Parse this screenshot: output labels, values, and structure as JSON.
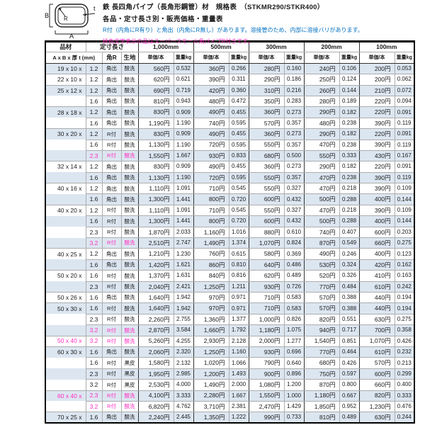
{
  "header": {
    "title": "鉄 長四角パイプ（長角形鋼管）材　規格表　（STKMR290/STKR400）",
    "subtitle": "各品・定寸長さ別・販売価格・重量表",
    "note_blue": "R付（内角にR有り）と角出（内角にR無し）があります。溶接管のため、内部に溶接バリがあります。",
    "note_pink": "桃色文字表示の品はスーパースモール角パイプR付きです。",
    "diagram": {
      "a": "A",
      "b": "B",
      "r": "R",
      "t": "t"
    }
  },
  "colors": {
    "pink": "#ff2dbf",
    "blue": "#0070c0",
    "row_shade": "#dce6f1"
  },
  "table": {
    "header": {
      "item": "品材",
      "length": "定寸長さ",
      "size_label": "A x B x 厚 t (mm)",
      "corner": "角R",
      "surface": "生地",
      "lengths": [
        "1,000mm",
        "500mm",
        "300mm",
        "200mm",
        "100mm"
      ],
      "price_label": "単価/本",
      "weight_label": "重量kg"
    },
    "groups": [
      {
        "size": "19 x 10 x",
        "pink": false,
        "rows": [
          {
            "t": "1.2",
            "r": "角出",
            "s": "酸洗",
            "pink": false,
            "v": [
              "560円",
              "0.532",
              "360円",
              "0.266",
              "280円",
              "0.160",
              "240円",
              "0.106",
              "200円",
              "0.053"
            ]
          }
        ]
      },
      {
        "size": "22 x 10 x",
        "pink": false,
        "rows": [
          {
            "t": "1.2",
            "r": "角出",
            "s": "酸洗",
            "pink": false,
            "v": [
              "620円",
              "0.621",
              "390円",
              "0.311",
              "290円",
              "0.186",
              "250円",
              "0.124",
              "200円",
              "0.062"
            ]
          }
        ]
      },
      {
        "size": "25 x 12 x",
        "pink": false,
        "rows": [
          {
            "t": "1.2",
            "r": "角出",
            "s": "酸洗",
            "pink": false,
            "v": [
              "690円",
              "0.719",
              "420円",
              "0.360",
              "310円",
              "0.216",
              "260円",
              "0.144",
              "210円",
              "0.072"
            ]
          },
          {
            "t": "1.6",
            "r": "角出",
            "s": "酸洗",
            "pink": false,
            "v": [
              "810円",
              "0.943",
              "480円",
              "0.472",
              "350円",
              "0.283",
              "280円",
              "0.189",
              "220円",
              "0.094"
            ]
          }
        ]
      },
      {
        "size": "28 x 18 x",
        "pink": false,
        "rows": [
          {
            "t": "1.2",
            "r": "角出",
            "s": "酸洗",
            "pink": false,
            "v": [
              "830円",
              "0.909",
              "490円",
              "0.455",
              "360円",
              "0.273",
              "290円",
              "0.182",
              "220円",
              "0.091"
            ]
          },
          {
            "t": "1.6",
            "r": "角出",
            "s": "酸洗",
            "pink": false,
            "v": [
              "1,190円",
              "1.190",
              "740円",
              "0.595",
              "570円",
              "0.357",
              "480円",
              "0.238",
              "390円",
              "0.119"
            ]
          }
        ]
      },
      {
        "size": "30 x 20 x",
        "pink": false,
        "rows": [
          {
            "t": "1.2",
            "r": "R付",
            "s": "酸洗",
            "pink": false,
            "v": [
              "830円",
              "0.909",
              "490円",
              "0.455",
              "360円",
              "0.273",
              "290円",
              "0.182",
              "220円",
              "0.091"
            ]
          },
          {
            "t": "1.6",
            "r": "R付",
            "s": "酸洗",
            "pink": false,
            "v": [
              "1,130円",
              "1.190",
              "720円",
              "0.595",
              "550円",
              "0.357",
              "470円",
              "0.238",
              "390円",
              "0.119"
            ]
          },
          {
            "t": "2.3",
            "r": "R付",
            "s": "酸洗",
            "pink": true,
            "v": [
              "1,550円",
              "1.667",
              "930円",
              "0.833",
              "680円",
              "0.500",
              "550円",
              "0.333",
              "430円",
              "0.167"
            ]
          }
        ]
      },
      {
        "size": "32 x 14 x",
        "pink": false,
        "rows": [
          {
            "t": "1.2",
            "r": "角出",
            "s": "酸洗",
            "pink": false,
            "v": [
              "830円",
              "0.909",
              "490円",
              "0.455",
              "360円",
              "0.273",
              "290円",
              "0.182",
              "220円",
              "0.091"
            ]
          },
          {
            "t": "1.6",
            "r": "角出",
            "s": "酸洗",
            "pink": false,
            "v": [
              "1,130円",
              "1.190",
              "720円",
              "0.595",
              "550円",
              "0.357",
              "470円",
              "0.238",
              "390円",
              "0.119"
            ]
          }
        ]
      },
      {
        "size": "40 x 16 x",
        "pink": false,
        "rows": [
          {
            "t": "1.2",
            "r": "角出",
            "s": "酸洗",
            "pink": false,
            "v": [
              "1,110円",
              "1.091",
              "710円",
              "0.545",
              "550円",
              "0.327",
              "470円",
              "0.218",
              "390円",
              "0.109"
            ]
          },
          {
            "t": "1.6",
            "r": "角出",
            "s": "酸洗",
            "pink": false,
            "v": [
              "1,300円",
              "1.441",
              "800円",
              "0.720",
              "600円",
              "0.432",
              "500円",
              "0.288",
              "400円",
              "0.144"
            ]
          }
        ]
      },
      {
        "size": "40 x 20 x",
        "pink": false,
        "rows": [
          {
            "t": "1.2",
            "r": "R付",
            "s": "酸洗",
            "pink": false,
            "v": [
              "1,110円",
              "1.091",
              "710円",
              "0.545",
              "550円",
              "0.327",
              "470円",
              "0.218",
              "390円",
              "0.109"
            ]
          },
          {
            "t": "1.6",
            "r": "R付",
            "s": "酸洗",
            "pink": false,
            "v": [
              "1,300円",
              "1.441",
              "800円",
              "0.720",
              "600円",
              "0.432",
              "500円",
              "0.288",
              "400円",
              "0.144"
            ]
          },
          {
            "t": "2.3",
            "r": "R付",
            "s": "酸洗",
            "pink": false,
            "v": [
              "1,870円",
              "2.033",
              "1,160円",
              "1.016",
              "880円",
              "0.610",
              "740円",
              "0.407",
              "600円",
              "0.203"
            ]
          },
          {
            "t": "3.2",
            "r": "R付",
            "s": "酸洗",
            "pink": true,
            "v": [
              "2,510円",
              "2.747",
              "1,490円",
              "1.374",
              "1,070円",
              "0.824",
              "870円",
              "0.549",
              "660円",
              "0.275"
            ]
          }
        ]
      },
      {
        "size": "40 x 25 x",
        "pink": false,
        "rows": [
          {
            "t": "1.2",
            "r": "角出",
            "s": "酸洗",
            "pink": false,
            "v": [
              "1,210円",
              "1.230",
              "760円",
              "0.615",
              "580円",
              "0.369",
              "490円",
              "0.246",
              "400円",
              "0.123"
            ]
          },
          {
            "t": "1.6",
            "r": "角出",
            "s": "酸洗",
            "pink": false,
            "v": [
              "1,420円",
              "1.621",
              "860円",
              "0.810",
              "640円",
              "0.486",
              "530円",
              "0.324",
              "420円",
              "0.162"
            ]
          }
        ]
      },
      {
        "size": "50 x 20 x",
        "pink": false,
        "rows": [
          {
            "t": "1.6",
            "r": "R付",
            "s": "酸洗",
            "pink": false,
            "v": [
              "1,370円",
              "1.631",
              "840円",
              "0.816",
              "620円",
              "0.489",
              "520円",
              "0.326",
              "410円",
              "0.163"
            ]
          },
          {
            "t": "2.3",
            "r": "R付",
            "s": "酸洗",
            "pink": false,
            "v": [
              "2,040円",
              "2.421",
              "1,250円",
              "1.211",
              "930円",
              "0.726",
              "770円",
              "0.484",
              "610円",
              "0.242"
            ]
          }
        ]
      },
      {
        "size": "50 x 26 x",
        "pink": false,
        "rows": [
          {
            "t": "1.6",
            "r": "角出",
            "s": "酸洗",
            "pink": false,
            "v": [
              "1,640円",
              "1.942",
              "970円",
              "0.971",
              "710円",
              "0.583",
              "570円",
              "0.388",
              "440円",
              "0.194"
            ]
          }
        ]
      },
      {
        "size": "50 x 30 x",
        "pink": false,
        "rows": [
          {
            "t": "1.6",
            "r": "R付",
            "s": "酸洗",
            "pink": false,
            "v": [
              "1,640円",
              "1.942",
              "970円",
              "0.971",
              "710円",
              "0.583",
              "570円",
              "0.388",
              "440円",
              "0.194"
            ]
          },
          {
            "t": "2.3",
            "r": "R付",
            "s": "酸洗",
            "pink": false,
            "v": [
              "2,260円",
              "2.755",
              "1,360円",
              "1.377",
              "1,000円",
              "0.826",
              "820円",
              "0.551",
              "630円",
              "0.275"
            ]
          },
          {
            "t": "3.2",
            "r": "R付",
            "s": "酸洗",
            "pink": true,
            "v": [
              "2,870円",
              "3.584",
              "1,660円",
              "1.792",
              "1,180円",
              "1.075",
              "940円",
              "0.717",
              "700円",
              "0.358"
            ]
          }
        ]
      },
      {
        "size": "50 x 40 x",
        "pink": true,
        "rows": [
          {
            "t": "3.2",
            "r": "R付",
            "s": "酸洗",
            "pink": true,
            "v": [
              "5,260円",
              "4.255",
              "2,930円",
              "2.128",
              "2,000円",
              "1.277",
              "1,540円",
              "0.851",
              "1,070円",
              "0.426"
            ]
          }
        ]
      },
      {
        "size": "60 x 30 x",
        "pink": false,
        "rows": [
          {
            "t": "1.6",
            "r": "角出",
            "s": "酸洗",
            "pink": false,
            "v": [
              "2,060円",
              "2.320",
              "1,250円",
              "1.160",
              "930円",
              "0.696",
              "770円",
              "0.464",
              "610円",
              "0.232"
            ]
          },
          {
            "t": "1.6",
            "r": "R付",
            "s": "黒皮",
            "pink": false,
            "v": [
              "1,580円",
              "2.132",
              "1,020円",
              "1.066",
              "790円",
              "0.640",
              "680円",
              "0.426",
              "570円",
              "0.213"
            ]
          },
          {
            "t": "2.3",
            "r": "R付",
            "s": "黒皮",
            "pink": false,
            "v": [
              "1,950円",
              "2.985",
              "1,200円",
              "1.493",
              "900円",
              "0.896",
              "750円",
              "0.597",
              "600円",
              "0.299"
            ]
          },
          {
            "t": "3.2",
            "r": "R付",
            "s": "黒皮",
            "pink": false,
            "v": [
              "2,530円",
              "4.000",
              "1,490円",
              "2.000",
              "1,080円",
              "1.200",
              "870円",
              "0.800",
              "660円",
              "0.400"
            ]
          }
        ]
      },
      {
        "size": "60 x 40 x",
        "pink": true,
        "rows": [
          {
            "t": "2.3",
            "r": "R付",
            "s": "酸洗",
            "pink": true,
            "v": [
              "4,100円",
              "3.333",
              "2,280円",
              "1.667",
              "1,550円",
              "1.000",
              "1,180円",
              "0.667",
              "820円",
              "0.333"
            ]
          },
          {
            "t": "3.2",
            "r": "R付",
            "s": "酸洗",
            "pink": true,
            "v": [
              "6,820円",
              "4.762",
              "3,710円",
              "2.381",
              "2,470円",
              "1.429",
              "1,850円",
              "0.952",
              "1,230円",
              "0.476"
            ]
          }
        ]
      },
      {
        "size": "70 x 25 x",
        "pink": false,
        "rows": [
          {
            "t": "1.6",
            "r": "角出",
            "s": "酸洗",
            "pink": false,
            "v": [
              "2,240円",
              "2.445",
              "1,350円",
              "1.222",
              "990円",
              "0.733",
              "810円",
              "0.489",
              "630円",
              "0.244"
            ]
          }
        ]
      }
    ]
  }
}
